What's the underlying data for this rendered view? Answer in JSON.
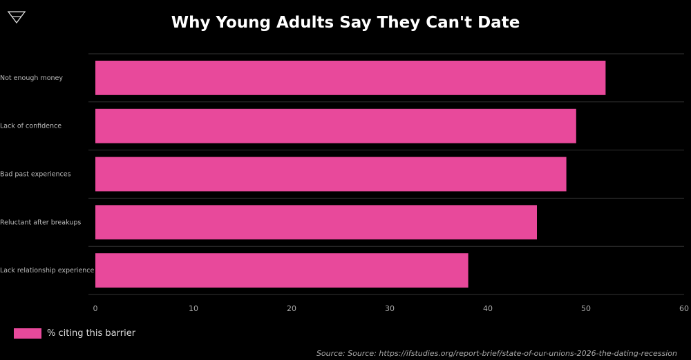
{
  "title": "Why Young Adults Say They Can't Date",
  "logo_icon": "triangle-logo-icon",
  "source": "Source: Source: https://ifstudies.org/report-brief/state-of-our-unions-2026-the-dating-recession",
  "colors": {
    "bar": "#e8499b",
    "background": "#000000",
    "grid": "#333333",
    "text": "#cccccc"
  },
  "chart_data": {
    "type": "bar",
    "orientation": "horizontal",
    "categories": [
      "Not enough money",
      "Lack of confidence",
      "Bad past experiences",
      "Reluctant after breakups",
      "Lack relationship experience"
    ],
    "series": [
      {
        "name": "% citing this barrier",
        "values": [
          52,
          49,
          48,
          45,
          38
        ]
      }
    ],
    "xlim": [
      0,
      60
    ],
    "xticks": [
      0,
      10,
      20,
      30,
      40,
      50,
      60
    ],
    "xlabel": "",
    "ylabel": "",
    "grid": "horizontal separators",
    "legend_position": "bottom-left"
  }
}
